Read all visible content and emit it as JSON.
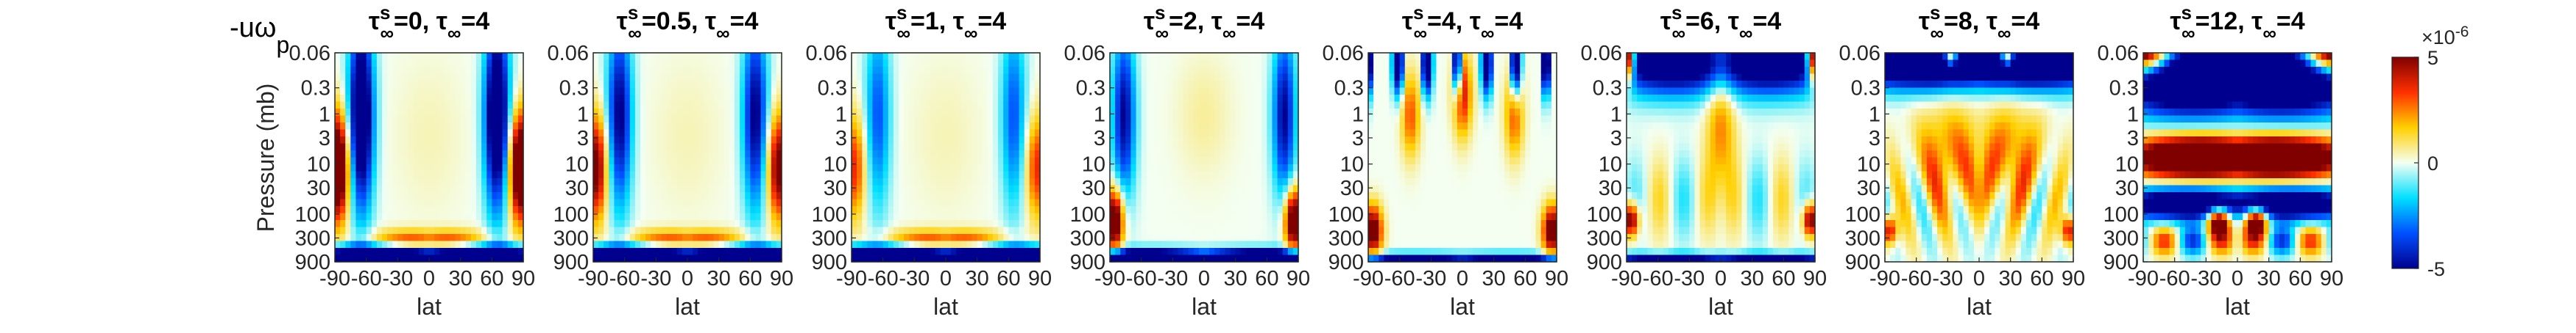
{
  "figure_label": {
    "main": "-uω",
    "sub": "p"
  },
  "chart_data": {
    "type": "heatmap",
    "quantity": "-uω_p",
    "ylabel": "Pressure (mb)",
    "xlabel": "lat",
    "y_scale": "log",
    "y_reversed": true,
    "xlim": [
      -90,
      90
    ],
    "ylim": [
      900,
      0.06
    ],
    "x_ticks": [
      "-90",
      "-60",
      "-30",
      "0",
      "30",
      "60",
      "90"
    ],
    "y_ticks": [
      "0.06",
      "0.3",
      "1",
      "3",
      "10",
      "30",
      "100",
      "300",
      "900"
    ],
    "colorbar": {
      "range": [
        -5e-06,
        5e-06
      ],
      "exponent_label": "×10",
      "exponent_power": "-6",
      "tick_labels": [
        "5",
        "0",
        "-5"
      ],
      "colormap": "jet",
      "colors": [
        "#00008f",
        "#0050ff",
        "#00dfff",
        "#f4fff2",
        "#ffd000",
        "#ff3000",
        "#800000"
      ]
    },
    "panels": [
      {
        "title": {
          "tau": "τ",
          "sup": "s",
          "sub": "∞",
          "mid": "=0, ",
          "tau2": "τ",
          "sub2": "∞",
          "end": "=4"
        },
        "tau_s": 0,
        "tau_inf": 4
      },
      {
        "title": {
          "tau": "τ",
          "sup": "s",
          "sub": "∞",
          "mid": "=0.5, ",
          "tau2": "τ",
          "sub2": "∞",
          "end": "=4"
        },
        "tau_s": 0.5,
        "tau_inf": 4
      },
      {
        "title": {
          "tau": "τ",
          "sup": "s",
          "sub": "∞",
          "mid": "=1, ",
          "tau2": "τ",
          "sub2": "∞",
          "end": "=4"
        },
        "tau_s": 1,
        "tau_inf": 4
      },
      {
        "title": {
          "tau": "τ",
          "sup": "s",
          "sub": "∞",
          "mid": "=2, ",
          "tau2": "τ",
          "sub2": "∞",
          "end": "=4"
        },
        "tau_s": 2,
        "tau_inf": 4
      },
      {
        "title": {
          "tau": "τ",
          "sup": "s",
          "sub": "∞",
          "mid": "=4, ",
          "tau2": "τ",
          "sub2": "∞",
          "end": "=4"
        },
        "tau_s": 4,
        "tau_inf": 4
      },
      {
        "title": {
          "tau": "τ",
          "sup": "s",
          "sub": "∞",
          "mid": "=6, ",
          "tau2": "τ",
          "sub2": "∞",
          "end": "=4"
        },
        "tau_s": 6,
        "tau_inf": 4
      },
      {
        "title": {
          "tau": "τ",
          "sup": "s",
          "sub": "∞",
          "mid": "=8, ",
          "tau2": "τ",
          "sub2": "∞",
          "end": "=4"
        },
        "tau_s": 8,
        "tau_inf": 4
      },
      {
        "title": {
          "tau": "τ",
          "sup": "s",
          "sub": "∞",
          "mid": "=12, ",
          "tau2": "τ",
          "sub2": "∞",
          "end": "=4"
        },
        "tau_s": 12,
        "tau_inf": 4
      }
    ]
  }
}
